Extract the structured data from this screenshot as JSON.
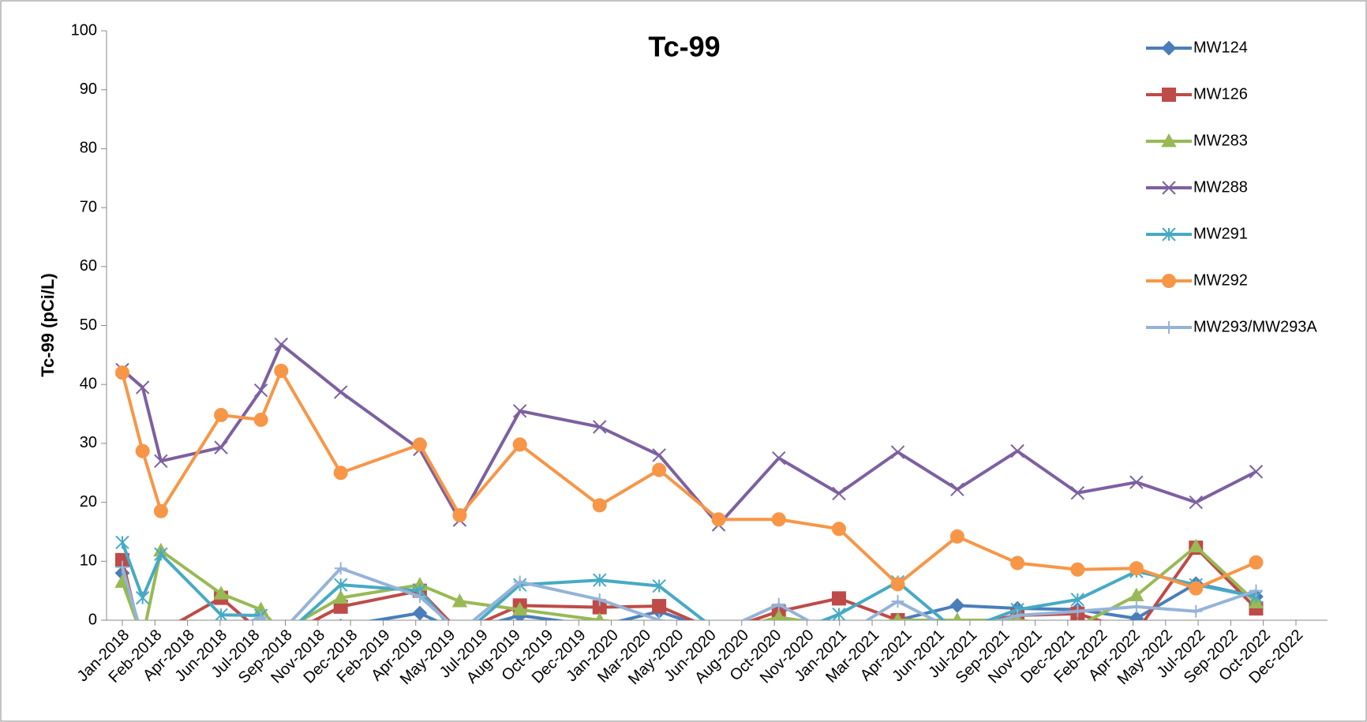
{
  "chart_data": {
    "type": "line",
    "title": "Tc-99",
    "y_label": "Tc-99 (pCi/L)",
    "x": [
      "2018-01",
      "2018-02",
      "2018-03",
      "2018-06",
      "2018-08",
      "2018-09",
      "2018-12",
      "2019-04",
      "2019-06",
      "2019-09",
      "2020-01",
      "2020-04",
      "2020-07",
      "2020-10",
      "2021-01",
      "2021-04",
      "2021-07",
      "2021-10",
      "2022-01",
      "2022-04",
      "2022-07",
      "2022-10"
    ],
    "xlim": [
      "2018-01",
      "2022-12"
    ],
    "xtick_labels": [
      "Jan-2018",
      "Feb-2018",
      "Apr-2018",
      "Jun-2018",
      "Jul-2018",
      "Sep-2018",
      "Nov-2018",
      "Dec-2018",
      "Feb-2019",
      "Apr-2019",
      "May-2019",
      "Jul-2019",
      "Aug-2019",
      "Oct-2019",
      "Dec-2019",
      "Jan-2020",
      "Mar-2020",
      "May-2020",
      "Jun-2020",
      "Aug-2020",
      "Oct-2020",
      "Nov-2020",
      "Jan-2021",
      "Mar-2021",
      "Apr-2021",
      "Jun-2021",
      "Jul-2021",
      "Sep-2021",
      "Nov-2021",
      "Dec-2021",
      "Feb-2022",
      "Apr-2022",
      "May-2022",
      "Jul-2022",
      "Sep-2022",
      "Oct-2022",
      "Dec-2022"
    ],
    "ylim": [
      0,
      100
    ],
    "yticks": [
      0,
      10,
      20,
      30,
      40,
      50,
      60,
      70,
      80,
      90,
      100
    ],
    "legend": "right",
    "series": [
      {
        "name": "MW124",
        "color": "#4a7ebb",
        "marker": "diamond",
        "values": [
          8,
          -3,
          -2,
          -2,
          -2,
          -2,
          -1,
          1.2,
          -2,
          0.8,
          -1,
          1.5,
          -2,
          -1,
          -2,
          0,
          2.5,
          2,
          1.8,
          0.3,
          6.2,
          4
        ]
      },
      {
        "name": "MW126",
        "color": "#be4b48",
        "marker": "square",
        "values": [
          10.2,
          -4,
          -2,
          3.8,
          -2,
          -3,
          2.3,
          5,
          -2,
          2.5,
          2.2,
          2.4,
          -2,
          1.5,
          3.7,
          0,
          -1,
          0.8,
          1.1,
          -2,
          12.3,
          2
        ]
      },
      {
        "name": "MW283",
        "color": "#98b954",
        "marker": "triangle",
        "values": [
          6.5,
          -3,
          11.8,
          4.5,
          1.8,
          -2,
          3.8,
          6,
          3.2,
          1.8,
          0,
          -1,
          -2,
          0.5,
          -1,
          0,
          0,
          0,
          -1,
          4.2,
          12.5,
          3
        ]
      },
      {
        "name": "MW288",
        "color": "#7d60a0",
        "marker": "x",
        "values": [
          42.5,
          39.5,
          27,
          29.3,
          39,
          46.8,
          38.7,
          29,
          17,
          35.5,
          32.8,
          28,
          16.2,
          27.5,
          21.5,
          28.5,
          22.2,
          28.7,
          21.6,
          23.4,
          20,
          25.2
        ]
      },
      {
        "name": "MW291",
        "color": "#46aac5",
        "marker": "star",
        "values": [
          13.2,
          3.8,
          11.2,
          0.9,
          0.8,
          -3,
          6,
          5,
          -3,
          6,
          6.8,
          5.8,
          -2,
          -3,
          1,
          6.5,
          -2,
          1.8,
          3.5,
          8.3,
          6,
          4
        ]
      },
      {
        "name": "MW292",
        "color": "#f79646",
        "marker": "circle",
        "values": [
          42,
          28.7,
          18.5,
          34.8,
          34,
          42.3,
          25,
          29.8,
          17.8,
          29.8,
          19.5,
          25.5,
          17.1,
          17.1,
          15.5,
          6.1,
          14.2,
          9.7,
          8.6,
          8.8,
          5.4,
          9.8
        ]
      },
      {
        "name": "MW293/MW293A",
        "color": "#95b3d7",
        "marker": "plus",
        "values": [
          9,
          -3,
          -2,
          -2,
          0.5,
          -2,
          8.8,
          4,
          -2,
          6.5,
          3.5,
          0,
          -2,
          2.7,
          -3,
          3.2,
          -2,
          0.8,
          1.5,
          2.3,
          1.5,
          5
        ]
      }
    ]
  }
}
